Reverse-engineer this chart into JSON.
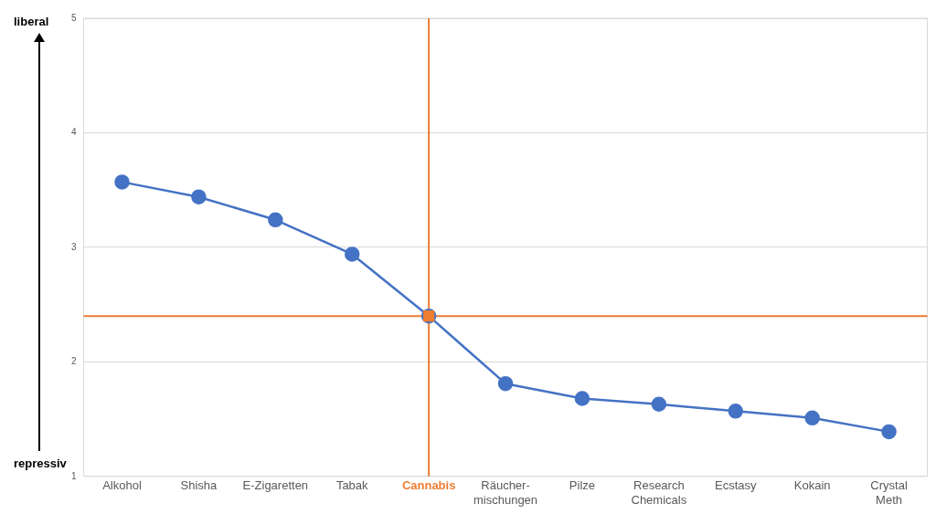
{
  "chart_data": {
    "type": "line",
    "categories": [
      "Alkohol",
      "Shisha",
      "E-Zigaretten",
      "Tabak",
      "Cannabis",
      "Räucher- mischungen",
      "Pilze",
      "Research Chemicals",
      "Ecstasy",
      "Kokain",
      "Crystal Meth"
    ],
    "series": [
      {
        "color": "#4472c4",
        "marker": "circle",
        "values": [
          3.57,
          3.44,
          3.24,
          2.94,
          2.4,
          1.81,
          1.68,
          1.63,
          1.57,
          1.51,
          1.39
        ]
      },
      {
        "type": "scatter",
        "color": "#ed7d31",
        "marker": "square",
        "x": [
          "Cannabis"
        ],
        "values": [
          2.4
        ]
      }
    ],
    "ylim": [
      1,
      5
    ],
    "yticks": [
      1,
      2,
      3,
      4,
      5
    ],
    "grid": "y",
    "ref_lines": [
      {
        "axis": "x",
        "value": "Cannabis",
        "color": "#ed7d31"
      },
      {
        "axis": "y",
        "value": 2.4,
        "color": "#ed7d31"
      }
    ],
    "annotations": [
      "liberal",
      "repressiv"
    ]
  }
}
